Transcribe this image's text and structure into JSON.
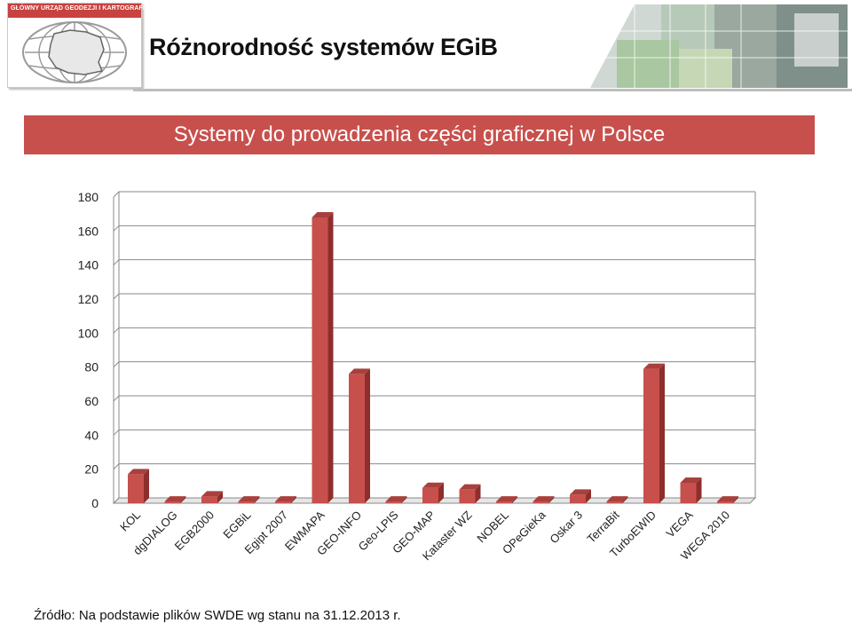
{
  "header": {
    "logo_text": "GŁÓWNY URZĄD GEODEZJI I KARTOGRAFII",
    "title": "Różnorodność systemów EGiB"
  },
  "banner": {
    "text": "Systemy do prowadzenia części graficznej w Polsce"
  },
  "chart_data": {
    "type": "bar",
    "title": "Systemy do prowadzenia części graficznej w Polsce",
    "categories": [
      "KOL",
      "dgDIALOG",
      "EGB2000",
      "EGBiL",
      "Egipt 2007",
      "EWMAPA",
      "GEO-INFO",
      "Geo-LPIS",
      "GEO-MAP",
      "Kataster WZ",
      "NOBEL",
      "OPeGieKa",
      "Oskar 3",
      "TerraBit",
      "TurboEWID",
      "VEGA",
      "WEGA 2010"
    ],
    "values": [
      17,
      1,
      4,
      1,
      1,
      168,
      76,
      1,
      9,
      8,
      1,
      1,
      5,
      1,
      79,
      12,
      1
    ],
    "ylim": [
      0,
      180
    ],
    "yticks": [
      "0",
      "20",
      "40",
      "60",
      "80",
      "100",
      "120",
      "140",
      "160",
      "180"
    ],
    "grid": true,
    "legend": "none",
    "bar_color": "#c8504c",
    "bar_side_color": "#8e2e2c",
    "bar_top_color": "#a8403d"
  },
  "footer": {
    "source": "Źródło: Na podstawie plików SWDE wg stanu na 31.12.2013 r."
  }
}
